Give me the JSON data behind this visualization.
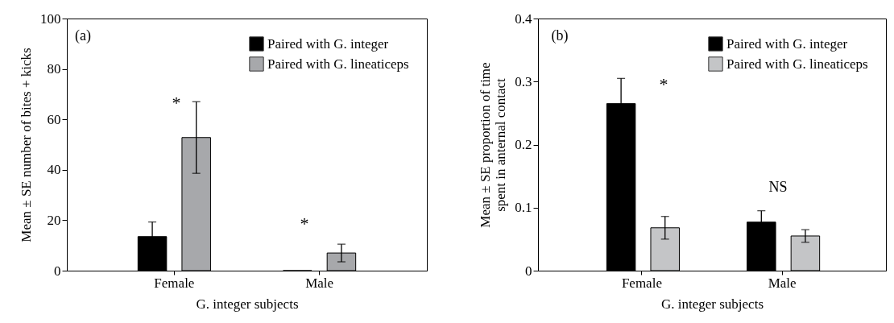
{
  "chart_data": [
    {
      "type": "bar",
      "categories": [
        "Female",
        "Male"
      ],
      "xlabel": "G. integer subjects",
      "ylabel": "Mean ± SE number of bites + kicks",
      "ylim": [
        0,
        100
      ],
      "yticks": [
        0,
        20,
        40,
        60,
        80,
        100
      ],
      "legend": "top right",
      "grid": false,
      "series": [
        {
          "name": "Paired with G. integer",
          "color": "#000000",
          "values": [
            13.5,
            0
          ],
          "errors": [
            5.8,
            null
          ]
        },
        {
          "name": "Paired with G. lineaticeps",
          "color": "#a7a8ab",
          "values": [
            52.8,
            7
          ],
          "errors": [
            14.2,
            3.5
          ]
        }
      ],
      "annotations": [
        "(a)",
        "*",
        "*"
      ]
    },
    {
      "type": "bar",
      "categories": [
        "Female",
        "Male"
      ],
      "xlabel": "G. integer subjects",
      "ylabel": "Mean ± SE proportion of time spent in anternal contact",
      "ylim": [
        0,
        0.4
      ],
      "yticks": [
        0,
        0.1,
        0.2,
        0.3,
        0.4
      ],
      "legend": "top right",
      "grid": false,
      "series": [
        {
          "name": "Paired with G. integer",
          "color": "#000000",
          "values": [
            0.265,
            0.077
          ],
          "errors": [
            0.04,
            0.018
          ]
        },
        {
          "name": "Paired with G. lineaticeps",
          "color": "#c4c5c7",
          "values": [
            0.068,
            0.055
          ],
          "errors": [
            0.018,
            0.01
          ]
        }
      ],
      "annotations": [
        "(b)",
        "*",
        "NS"
      ]
    }
  ]
}
